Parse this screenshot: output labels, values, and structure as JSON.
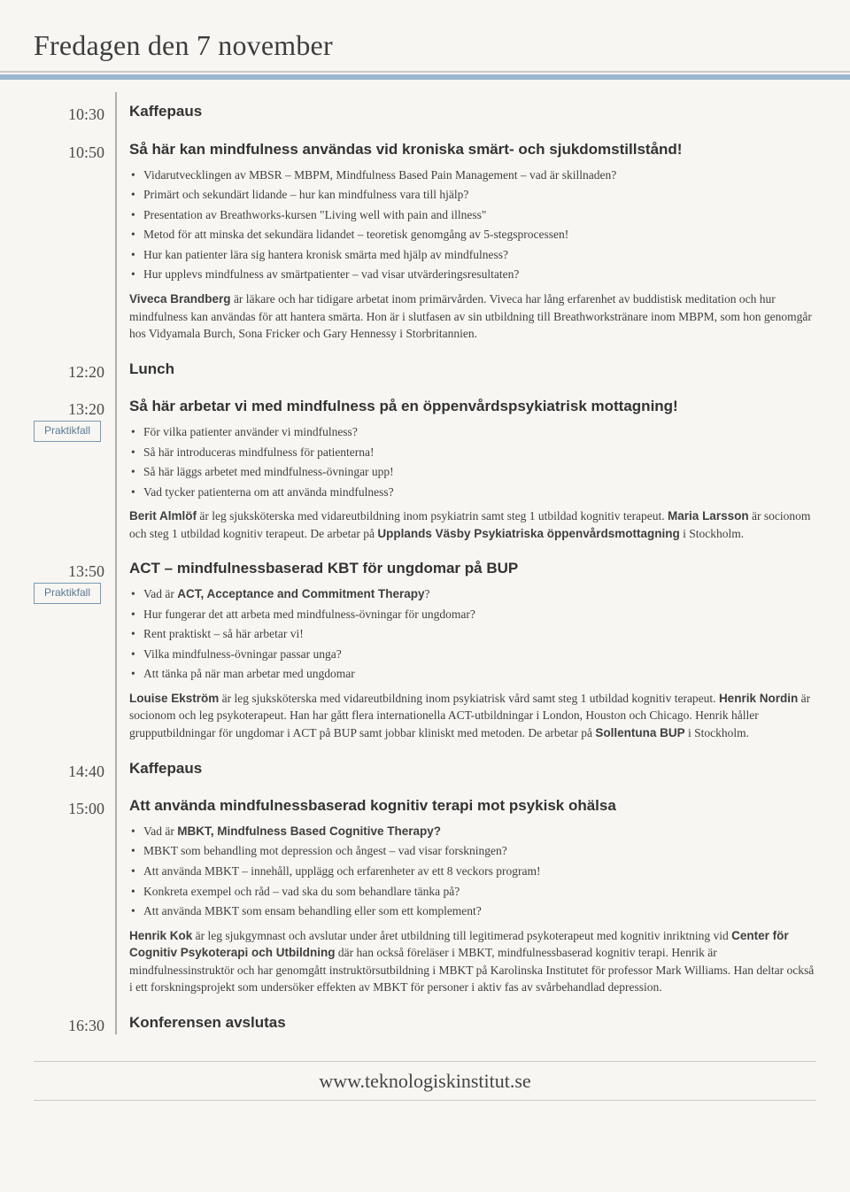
{
  "colors": {
    "background": "#f7f6f2",
    "accent_bar": "#9bb6cf",
    "divider_line": "#c9c9c9",
    "timeline": "#b0b0b0",
    "tag_border": "#7a9ab5",
    "tag_text": "#5a7a95",
    "text": "#3a3a3a",
    "title_text": "#3d3d3d"
  },
  "typography": {
    "page_title_fontsize": 32,
    "entry_title_fontsize": 17,
    "time_fontsize": 18,
    "body_fontsize": 13.5,
    "footer_fontsize": 22,
    "heading_family": "Arial, Helvetica, sans-serif",
    "body_family": "Georgia, serif"
  },
  "page_title": "Fredagen den 7 november",
  "footer": "www.teknologiskinstitut.se",
  "tag_label": "Praktikfall",
  "entries": [
    {
      "time": "10:30",
      "title": "Kaffepaus"
    },
    {
      "time": "10:50",
      "title": "Så här kan mindfulness användas vid kroniska smärt- och sjukdomstillstånd!",
      "bullets": [
        "Vidarutvecklingen av MBSR – MBPM, Mindfulness Based Pain Management – vad är skillnaden?",
        "Primärt och sekundärt lidande – hur kan mindfulness vara till hjälp?",
        "Presentation av Breathworks-kursen \"Living well with pain and illness\"",
        "Metod för att minska det sekundära lidandet – teoretisk genomgång av 5-stegsprocessen!",
        "Hur kan patienter lära sig hantera kronisk smärta med hjälp av mindfulness?",
        "Hur upplevs mindfulness av smärtpatienter – vad visar utvärderingsresultaten?"
      ],
      "desc_html": "<b>Viveca Brandberg</b> är läkare och har tidigare arbetat inom primärvården. Viveca har lång erfarenhet av buddistisk meditation och hur mindfulness kan användas för att hantera smärta. Hon är i slutfasen av sin utbildning till Breathworkstränare inom MBPM, som hon genomgår hos Vidyamala Burch, Sona Fricker och Gary Hennessy i Storbritannien."
    },
    {
      "time": "12:20",
      "title": "Lunch"
    },
    {
      "time": "13:20",
      "tag": true,
      "title": "Så här arbetar vi med mindfulness på en öppenvårdspsykiatrisk mottagning!",
      "bullets": [
        "För vilka patienter använder vi mindfulness?",
        "Så här introduceras mindfulness för patienterna!",
        "Så här läggs arbetet med mindfulness-övningar upp!",
        "Vad tycker patienterna om att använda mindfulness?"
      ],
      "desc_html": "<b>Berit Almlöf</b> är leg sjuksköterska med vidareutbildning inom psykiatrin samt steg 1 utbildad kognitiv terapeut. <b>Maria Larsson</b> är socionom och steg 1 utbildad kognitiv terapeut. De arbetar på <b>Upplands Väsby Psykiatriska öppenvårdsmottagning</b> i Stockholm."
    },
    {
      "time": "13:50",
      "tag": true,
      "title": "ACT – mindfulnessbaserad KBT för ungdomar på BUP",
      "bullets_html": [
        "Vad är <b>ACT, Acceptance and Commitment Therapy</b>?",
        "Hur fungerar det att arbeta med mindfulness-övningar för ungdomar?",
        "Rent praktiskt – så här arbetar vi!",
        "Vilka mindfulness-övningar passar unga?",
        "Att tänka på när man arbetar med ungdomar"
      ],
      "desc_html": "<b>Louise Ekström</b> är leg sjuksköterska med vidareutbildning inom psykiatrisk vård samt steg 1 utbildad kognitiv terapeut. <b>Henrik Nordin</b> är socionom och leg psykoterapeut. Han har gått flera internationella ACT-utbildningar i London, Houston och Chicago. Henrik håller grupputbildningar för ungdomar i ACT på BUP samt jobbar kliniskt med metoden. De arbetar på <b>Sollentuna BUP</b> i Stockholm."
    },
    {
      "time": "14:40",
      "title": "Kaffepaus"
    },
    {
      "time": "15:00",
      "title": "Att använda mindfulnessbaserad kognitiv terapi mot psykisk ohälsa",
      "bullets_html": [
        "Vad är <b>MBKT, Mindfulness Based Cognitive Therapy?</b>",
        "MBKT som behandling mot depression och ångest – vad visar forskningen?",
        "Att använda MBKT – innehåll, upplägg och erfarenheter av ett 8 veckors program!",
        "Konkreta exempel och råd – vad ska du som behandlare tänka på?",
        "Att använda MBKT som ensam behandling eller som ett komplement?"
      ],
      "desc_html": "<b>Henrik Kok</b> är leg sjukgymnast och avslutar under året utbildning till legitimerad psykoterapeut med kognitiv inriktning vid <b>Center för Cognitiv Psykoterapi och Utbildning</b> där han också föreläser i MBKT, mindfulnessbaserad kognitiv terapi. Henrik är mindfulnessinstruktör och har genomgått instruktörsutbildning i MBKT på Karolinska Institutet för professor Mark Williams. Han deltar också i ett forskningsprojekt som undersöker effekten av MBKT för personer i aktiv fas av svårbehandlad depression."
    },
    {
      "time": "16:30",
      "title": "Konferensen avslutas"
    }
  ]
}
